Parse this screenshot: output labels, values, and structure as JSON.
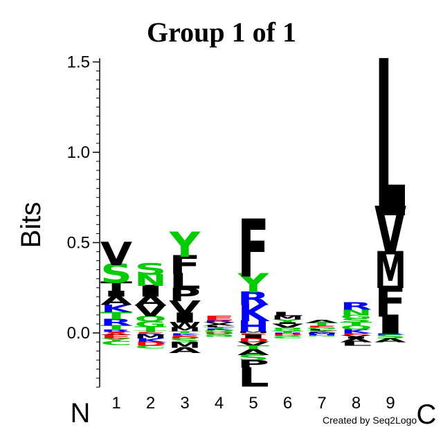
{
  "chart_data": {
    "type": "sequence-logo",
    "title": "Group 1 of 1",
    "ylabel": "Bits",
    "ylim": [
      -0.3,
      1.52
    ],
    "yticks": [
      "0.0",
      "0.5",
      "1.0",
      "1.5"
    ],
    "positions": [
      "1",
      "2",
      "3",
      "4",
      "5",
      "6",
      "7",
      "8",
      "9"
    ],
    "n_terminal": "N",
    "c_terminal": "C",
    "credit": "Created by Seq2Logo",
    "colors": {
      "black": "#000000",
      "green": "#00cc00",
      "blue": "#0000ff",
      "red": "#ff0000",
      "magenta": "#cc00cc"
    },
    "columns": [
      {
        "pos": [
          {
            "aa": "I",
            "h": 0.006,
            "c": "red"
          },
          {
            "aa": "R",
            "h": 0.012,
            "c": "blue"
          },
          {
            "aa": "T",
            "h": 0.025,
            "c": "green"
          },
          {
            "aa": "R",
            "h": 0.035,
            "c": "blue"
          },
          {
            "aa": "T",
            "h": 0.04,
            "c": "green"
          },
          {
            "aa": "K",
            "h": 0.04,
            "c": "blue"
          },
          {
            "aa": "A",
            "h": 0.045,
            "c": "black"
          },
          {
            "aa": "I",
            "h": 0.03,
            "c": "black"
          },
          {
            "aa": "T",
            "h": 0.05,
            "c": "black"
          },
          {
            "aa": "S",
            "h": 0.1,
            "c": "green"
          },
          {
            "aa": "V",
            "h": 0.12,
            "c": "black"
          }
        ],
        "neg": [
          {
            "aa": "A",
            "h": 0.01,
            "c": "black"
          },
          {
            "aa": "E",
            "h": 0.02,
            "c": "red"
          },
          {
            "aa": "Y",
            "h": 0.015,
            "c": "green"
          },
          {
            "aa": "C",
            "h": 0.02,
            "c": "green"
          }
        ]
      },
      {
        "pos": [
          {
            "aa": "E",
            "h": 0.005,
            "c": "red"
          },
          {
            "aa": "T",
            "h": 0.01,
            "c": "green"
          },
          {
            "aa": "T",
            "h": 0.02,
            "c": "green"
          },
          {
            "aa": "G",
            "h": 0.03,
            "c": "green"
          },
          {
            "aa": "Q",
            "h": 0.03,
            "c": "green"
          },
          {
            "aa": "V",
            "h": 0.06,
            "c": "black"
          },
          {
            "aa": "A",
            "h": 0.05,
            "c": "black"
          },
          {
            "aa": "I",
            "h": 0.06,
            "c": "black"
          },
          {
            "aa": "N",
            "h": 0.06,
            "c": "green"
          },
          {
            "aa": "S",
            "h": 0.06,
            "c": "green"
          }
        ],
        "neg": [
          {
            "aa": "R",
            "h": 0.01,
            "c": "blue"
          },
          {
            "aa": "M",
            "h": 0.02,
            "c": "black"
          },
          {
            "aa": "K",
            "h": 0.02,
            "c": "blue"
          },
          {
            "aa": "D",
            "h": 0.02,
            "c": "red"
          },
          {
            "aa": "C",
            "h": 0.015,
            "c": "green"
          }
        ]
      },
      {
        "pos": [
          {
            "aa": "T",
            "h": 0.01,
            "c": "green"
          },
          {
            "aa": "M",
            "h": 0.02,
            "c": "black"
          },
          {
            "aa": "W",
            "h": 0.03,
            "c": "black"
          },
          {
            "aa": "I",
            "h": 0.05,
            "c": "black"
          },
          {
            "aa": "V",
            "h": 0.07,
            "c": "black"
          },
          {
            "aa": "P",
            "h": 0.07,
            "c": "black"
          },
          {
            "aa": "L",
            "h": 0.08,
            "c": "black"
          },
          {
            "aa": "F",
            "h": 0.1,
            "c": "black"
          },
          {
            "aa": "Y",
            "h": 0.13,
            "c": "green"
          }
        ],
        "neg": [
          {
            "aa": "K",
            "h": 0.01,
            "c": "blue"
          },
          {
            "aa": "E",
            "h": 0.01,
            "c": "red"
          },
          {
            "aa": "D",
            "h": 0.01,
            "c": "red"
          },
          {
            "aa": "S",
            "h": 0.02,
            "c": "green"
          },
          {
            "aa": "M",
            "h": 0.03,
            "c": "black"
          },
          {
            "aa": "A",
            "h": 0.03,
            "c": "black"
          }
        ]
      },
      {
        "pos": [
          {
            "aa": "G",
            "h": 0.008,
            "c": "green"
          },
          {
            "aa": "Q",
            "h": 0.008,
            "c": "green"
          },
          {
            "aa": "K",
            "h": 0.008,
            "c": "blue"
          },
          {
            "aa": "T",
            "h": 0.008,
            "c": "green"
          },
          {
            "aa": "L",
            "h": 0.008,
            "c": "black"
          },
          {
            "aa": "A",
            "h": 0.01,
            "c": "black"
          },
          {
            "aa": "V",
            "h": 0.01,
            "c": "black"
          },
          {
            "aa": "R",
            "h": 0.01,
            "c": "blue"
          },
          {
            "aa": "E",
            "h": 0.025,
            "c": "red"
          }
        ],
        "neg": [
          {
            "aa": "D",
            "h": 0.006,
            "c": "red"
          },
          {
            "aa": "S",
            "h": 0.008,
            "c": "green"
          },
          {
            "aa": "N",
            "h": 0.006,
            "c": "green"
          }
        ]
      },
      {
        "pos": [
          {
            "aa": "M",
            "h": 0.01,
            "c": "black"
          },
          {
            "aa": "H",
            "h": 0.06,
            "c": "blue"
          },
          {
            "aa": "K",
            "h": 0.09,
            "c": "blue"
          },
          {
            "aa": "R",
            "h": 0.07,
            "c": "blue"
          },
          {
            "aa": "Y",
            "h": 0.1,
            "c": "green"
          },
          {
            "aa": "F",
            "h": 0.3,
            "c": "black"
          }
        ],
        "neg": [
          {
            "aa": "E",
            "h": 0.01,
            "c": "red"
          },
          {
            "aa": "I",
            "h": 0.02,
            "c": "black"
          },
          {
            "aa": "D",
            "h": 0.02,
            "c": "red"
          },
          {
            "aa": "V",
            "h": 0.02,
            "c": "black"
          },
          {
            "aa": "T",
            "h": 0.02,
            "c": "green"
          },
          {
            "aa": "A",
            "h": 0.03,
            "c": "black"
          },
          {
            "aa": "S",
            "h": 0.03,
            "c": "green"
          },
          {
            "aa": "P",
            "h": 0.04,
            "c": "black"
          },
          {
            "aa": "L",
            "h": 0.1,
            "c": "black"
          }
        ]
      },
      {
        "pos": [
          {
            "aa": "T",
            "h": 0.01,
            "c": "green"
          },
          {
            "aa": "G",
            "h": 0.01,
            "c": "green"
          },
          {
            "aa": "N",
            "h": 0.01,
            "c": "green"
          },
          {
            "aa": "V",
            "h": 0.02,
            "c": "black"
          },
          {
            "aa": "I",
            "h": 0.01,
            "c": "black"
          },
          {
            "aa": "Y",
            "h": 0.015,
            "c": "green"
          },
          {
            "aa": "M",
            "h": 0.02,
            "c": "black"
          },
          {
            "aa": "L",
            "h": 0.02,
            "c": "black"
          }
        ],
        "neg": [
          {
            "aa": "H",
            "h": 0.006,
            "c": "blue"
          },
          {
            "aa": "D",
            "h": 0.008,
            "c": "red"
          },
          {
            "aa": "S",
            "h": 0.008,
            "c": "green"
          },
          {
            "aa": "C",
            "h": 0.008,
            "c": "green"
          }
        ]
      },
      {
        "pos": [
          {
            "aa": "K",
            "h": 0.006,
            "c": "blue"
          },
          {
            "aa": "Y",
            "h": 0.008,
            "c": "green"
          },
          {
            "aa": "L",
            "h": 0.008,
            "c": "black"
          },
          {
            "aa": "G",
            "h": 0.01,
            "c": "green"
          },
          {
            "aa": "E",
            "h": 0.01,
            "c": "red"
          },
          {
            "aa": "T",
            "h": 0.015,
            "c": "green"
          },
          {
            "aa": "A",
            "h": 0.015,
            "c": "black"
          }
        ],
        "neg": [
          {
            "aa": "M",
            "h": 0.006,
            "c": "black"
          },
          {
            "aa": "H",
            "h": 0.006,
            "c": "blue"
          },
          {
            "aa": "N",
            "h": 0.006,
            "c": "green"
          }
        ]
      },
      {
        "pos": [
          {
            "aa": "K",
            "h": 0.02,
            "c": "blue"
          },
          {
            "aa": "Q",
            "h": 0.02,
            "c": "green"
          },
          {
            "aa": "T",
            "h": 0.02,
            "c": "green"
          },
          {
            "aa": "S",
            "h": 0.02,
            "c": "green"
          },
          {
            "aa": "G",
            "h": 0.02,
            "c": "green"
          },
          {
            "aa": "N",
            "h": 0.03,
            "c": "green"
          },
          {
            "aa": "R",
            "h": 0.04,
            "c": "blue"
          }
        ],
        "neg": [
          {
            "aa": "E",
            "h": 0.01,
            "c": "red"
          },
          {
            "aa": "V",
            "h": 0.01,
            "c": "black"
          },
          {
            "aa": "I",
            "h": 0.01,
            "c": "black"
          },
          {
            "aa": "A",
            "h": 0.02,
            "c": "black"
          },
          {
            "aa": "L",
            "h": 0.02,
            "c": "black"
          }
        ]
      },
      {
        "pos": [
          {
            "aa": "I",
            "h": 0.1,
            "c": "black"
          },
          {
            "aa": "F",
            "h": 0.16,
            "c": "black"
          },
          {
            "aa": "M",
            "h": 0.19,
            "c": "black"
          },
          {
            "aa": "V",
            "h": 0.25,
            "c": "black"
          },
          {
            "aa": "L",
            "h": 0.81,
            "c": "black"
          }
        ],
        "neg": [
          {
            "aa": "R",
            "h": 0.01,
            "c": "blue"
          },
          {
            "aa": "S",
            "h": 0.02,
            "c": "green"
          },
          {
            "aa": "A",
            "h": 0.02,
            "c": "black"
          }
        ]
      }
    ]
  }
}
